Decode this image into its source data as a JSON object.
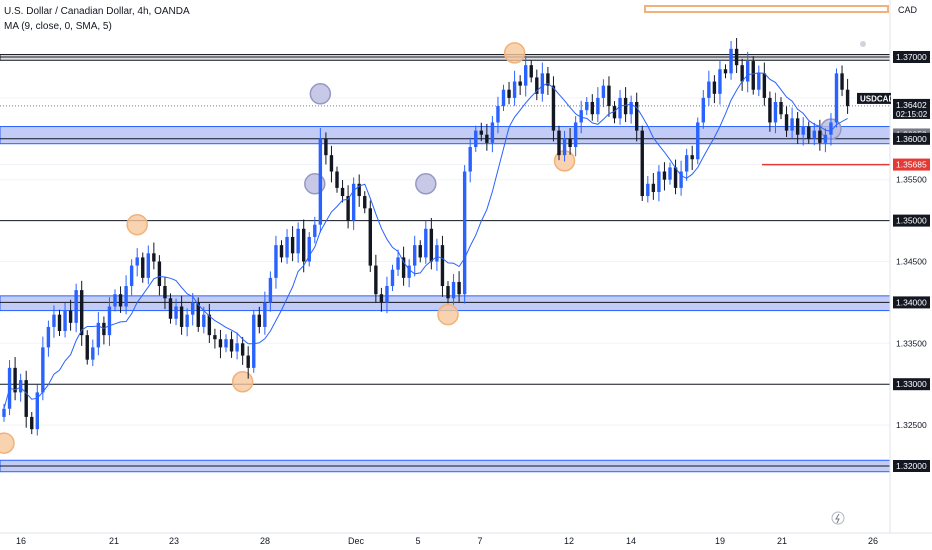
{
  "header": {
    "symbol_line": "U.S. Dollar / Canadian Dollar, 4h, OANDA",
    "indicator_line": "MA (9, close, 0, SMA, 5)",
    "currency": "CAD"
  },
  "current_price": {
    "ticker": "USDCAD",
    "price": "1.36402",
    "countdown": "02:15:02"
  },
  "colors": {
    "up": "#2962ff",
    "down": "#131722",
    "ma_line": "#2962ff",
    "zone_fill": "#b7c3f5",
    "zone_border": "#2962ff",
    "highlight_orange": "#f0b27a",
    "highlight_purple": "#9598c4",
    "red_level": "#e53935",
    "grid": "#f0f3fa"
  },
  "chart_data": {
    "type": "candlestick",
    "x_ticks": [
      "16",
      "21",
      "23",
      "28",
      "Dec",
      "5",
      "7",
      "12",
      "14",
      "19",
      "21",
      "26"
    ],
    "y_ticks": [
      "1.37000",
      "1.36500",
      "1.36053",
      "1.36000",
      "1.35685",
      "1.35500",
      "1.35000",
      "1.34500",
      "1.34000",
      "1.33500",
      "1.33000",
      "1.32500",
      "1.32000"
    ],
    "ylim": [
      1.318,
      1.3825
    ],
    "moving_average": {
      "type": "SMA",
      "length": 9
    },
    "horizontal_levels": [
      1.37,
      1.36,
      1.35,
      1.34,
      1.33,
      1.32
    ],
    "zones": [
      {
        "low": 1.3594,
        "high": 1.3615
      },
      {
        "low": 1.339,
        "high": 1.3408
      },
      {
        "low": 1.3193,
        "high": 1.3207
      },
      {
        "low": 1.3696,
        "high": 1.3703
      }
    ],
    "red_level": 1.35685,
    "price_labels": [
      {
        "value": "1.37000",
        "price": 1.37,
        "style": "dark"
      },
      {
        "value": "1.36402",
        "price": 1.36402,
        "style": "ticker"
      },
      {
        "value": "1.36053",
        "price": 1.36053,
        "style": "grey"
      },
      {
        "value": "1.36000",
        "price": 1.36,
        "style": "dark"
      },
      {
        "value": "1.35685",
        "price": 1.35685,
        "style": "red"
      },
      {
        "value": "1.35500",
        "price": 1.355,
        "style": "plain"
      },
      {
        "value": "1.35000",
        "price": 1.35,
        "style": "dark"
      },
      {
        "value": "1.34500",
        "price": 1.345,
        "style": "plain"
      },
      {
        "value": "1.34000",
        "price": 1.34,
        "style": "dark"
      },
      {
        "value": "1.33500",
        "price": 1.335,
        "style": "plain"
      },
      {
        "value": "1.33000",
        "price": 1.33,
        "style": "dark"
      },
      {
        "value": "1.32500",
        "price": 1.325,
        "style": "plain"
      },
      {
        "value": "1.32000",
        "price": 1.32,
        "style": "dark"
      }
    ],
    "closes": [
      1.327,
      1.332,
      1.329,
      1.3305,
      1.326,
      1.3245,
      1.329,
      1.3345,
      1.337,
      1.3385,
      1.3365,
      1.339,
      1.3375,
      1.3415,
      1.336,
      1.333,
      1.3345,
      1.3375,
      1.336,
      1.3395,
      1.341,
      1.3395,
      1.342,
      1.3445,
      1.3455,
      1.343,
      1.346,
      1.345,
      1.342,
      1.3405,
      1.338,
      1.3395,
      1.337,
      1.3385,
      1.34,
      1.337,
      1.3385,
      1.336,
      1.3355,
      1.3345,
      1.3355,
      1.334,
      1.335,
      1.3335,
      1.332,
      1.3385,
      1.337,
      1.34,
      1.343,
      1.347,
      1.3455,
      1.348,
      1.346,
      1.349,
      1.345,
      1.348,
      1.3495,
      1.36,
      1.358,
      1.356,
      1.354,
      1.353,
      1.35,
      1.3545,
      1.353,
      1.3515,
      1.3445,
      1.341,
      1.34,
      1.342,
      1.344,
      1.3455,
      1.343,
      1.3445,
      1.347,
      1.3455,
      1.349,
      1.345,
      1.347,
      1.342,
      1.3405,
      1.3425,
      1.341,
      1.356,
      1.359,
      1.361,
      1.3605,
      1.3595,
      1.362,
      1.364,
      1.366,
      1.365,
      1.367,
      1.3665,
      1.369,
      1.3675,
      1.3655,
      1.368,
      1.3665,
      1.361,
      1.358,
      1.36,
      1.359,
      1.362,
      1.3635,
      1.3645,
      1.363,
      1.365,
      1.3665,
      1.364,
      1.3625,
      1.365,
      1.363,
      1.3645,
      1.361,
      1.353,
      1.3545,
      1.3535,
      1.356,
      1.355,
      1.3565,
      1.354,
      1.356,
      1.358,
      1.3575,
      1.362,
      1.365,
      1.367,
      1.3655,
      1.3685,
      1.368,
      1.371,
      1.369,
      1.367,
      1.3695,
      1.366,
      1.368,
      1.365,
      1.362,
      1.3645,
      1.363,
      1.361,
      1.3625,
      1.3605,
      1.3615,
      1.36,
      1.361,
      1.3595,
      1.3605,
      1.362,
      1.368,
      1.366,
      1.364
    ],
    "highlight_circles": [
      {
        "index": 0,
        "price": 1.3228,
        "color": "orange"
      },
      {
        "index": 24,
        "price": 1.3495,
        "color": "orange"
      },
      {
        "index": 43,
        "price": 1.3303,
        "color": "orange"
      },
      {
        "index": 56,
        "price": 1.3545,
        "color": "purple"
      },
      {
        "index": 57,
        "price": 1.3655,
        "color": "purple"
      },
      {
        "index": 76,
        "price": 1.3545,
        "color": "purple"
      },
      {
        "index": 80,
        "price": 1.3385,
        "color": "orange"
      },
      {
        "index": 92,
        "price": 1.3705,
        "color": "orange"
      },
      {
        "index": 101,
        "price": 1.3573,
        "color": "orange"
      },
      {
        "index": 149,
        "price": 1.3612,
        "color": "purple"
      }
    ]
  }
}
